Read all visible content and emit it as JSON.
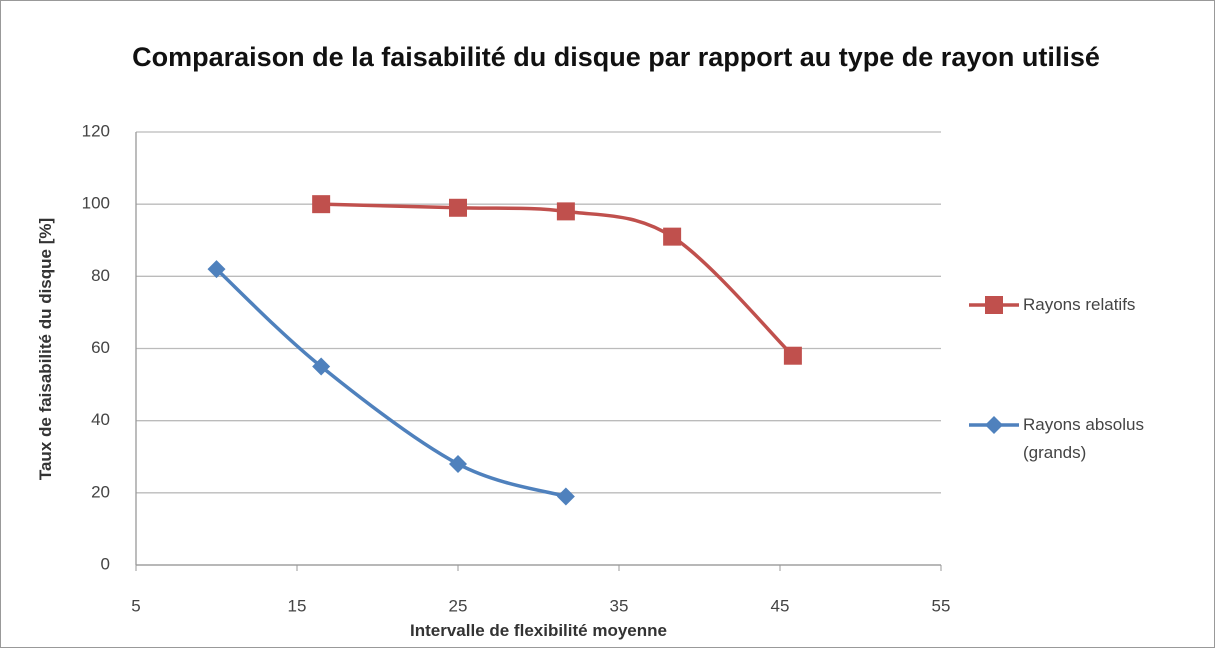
{
  "chart_data": {
    "type": "line",
    "title": "Comparaison de la faisabilité du disque par rapport au type de rayon utilisé",
    "xlabel": "Intervalle de flexibilité moyenne",
    "ylabel": "Taux de faisabilité du disque [%]",
    "xlim": [
      5,
      55
    ],
    "xticks": [
      5,
      15,
      25,
      35,
      45,
      55
    ],
    "ylim": [
      0,
      120
    ],
    "yticks": [
      0,
      20,
      40,
      60,
      80,
      100,
      120
    ],
    "grid": true,
    "smooth": true,
    "legend": "right",
    "series": [
      {
        "name": "Rayons relatifs",
        "color": "#c0504d",
        "marker": "square",
        "x": [
          16.5,
          25,
          31.7,
          38.3,
          45.8
        ],
        "values": [
          100,
          99,
          98,
          91,
          58
        ]
      },
      {
        "name": "Rayons absolus (grands)",
        "color": "#4f81bd",
        "marker": "diamond",
        "x": [
          10,
          16.5,
          25,
          31.7
        ],
        "values": [
          82,
          55,
          28,
          19
        ]
      }
    ]
  }
}
